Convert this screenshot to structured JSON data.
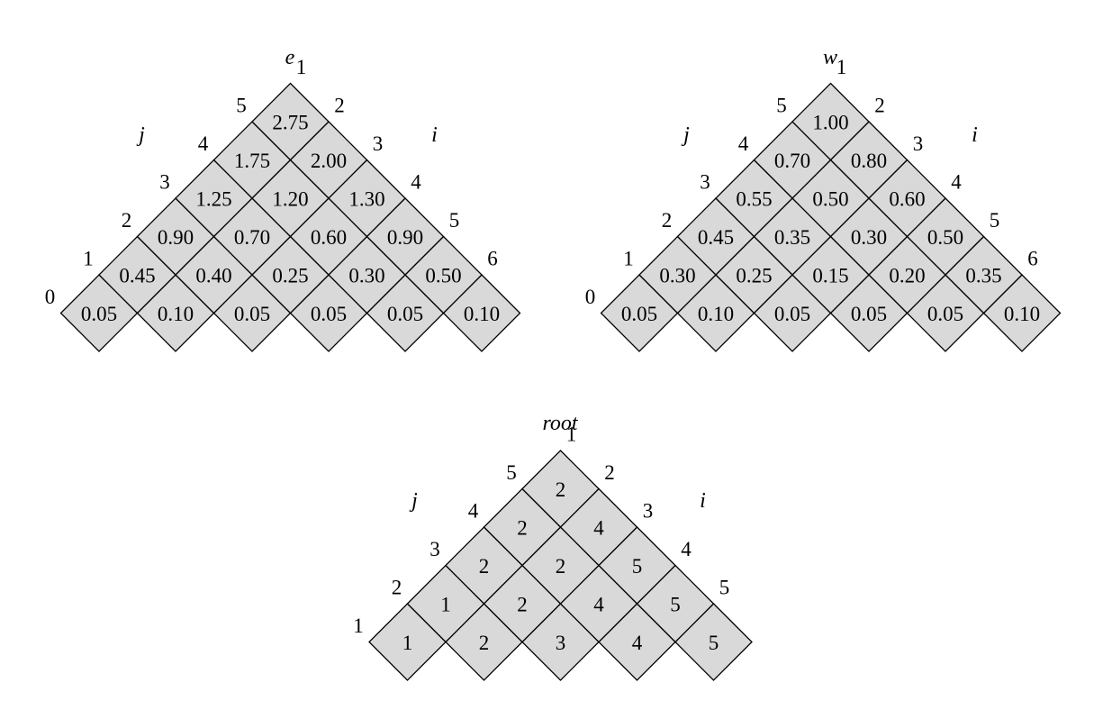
{
  "tables": [
    {
      "title": "e",
      "axis_left": "j",
      "axis_right": "i",
      "left_indices": [
        "0",
        "1",
        "2",
        "3",
        "4",
        "5"
      ],
      "right_indices": [
        "1",
        "2",
        "3",
        "4",
        "5",
        "6"
      ],
      "rows": [
        [
          "0.05",
          "0.10",
          "0.05",
          "0.05",
          "0.05",
          "0.10"
        ],
        [
          "0.45",
          "0.40",
          "0.25",
          "0.30",
          "0.50"
        ],
        [
          "0.90",
          "0.70",
          "0.60",
          "0.90"
        ],
        [
          "1.25",
          "1.20",
          "1.30"
        ],
        [
          "1.75",
          "2.00"
        ],
        [
          "2.75"
        ]
      ]
    },
    {
      "title": "w",
      "axis_left": "j",
      "axis_right": "i",
      "left_indices": [
        "0",
        "1",
        "2",
        "3",
        "4",
        "5"
      ],
      "right_indices": [
        "1",
        "2",
        "3",
        "4",
        "5",
        "6"
      ],
      "rows": [
        [
          "0.05",
          "0.10",
          "0.05",
          "0.05",
          "0.05",
          "0.10"
        ],
        [
          "0.30",
          "0.25",
          "0.15",
          "0.20",
          "0.35"
        ],
        [
          "0.45",
          "0.35",
          "0.30",
          "0.50"
        ],
        [
          "0.55",
          "0.50",
          "0.60"
        ],
        [
          "0.70",
          "0.80"
        ],
        [
          "1.00"
        ]
      ]
    },
    {
      "title": "root",
      "axis_left": "j",
      "axis_right": "i",
      "left_indices": [
        "1",
        "2",
        "3",
        "4",
        "5"
      ],
      "right_indices": [
        "1",
        "2",
        "3",
        "4",
        "5"
      ],
      "rows": [
        [
          "1",
          "2",
          "3",
          "4",
          "5"
        ],
        [
          "1",
          "2",
          "4",
          "5"
        ],
        [
          "2",
          "2",
          "5"
        ],
        [
          "2",
          "4"
        ],
        [
          "2"
        ]
      ]
    }
  ]
}
